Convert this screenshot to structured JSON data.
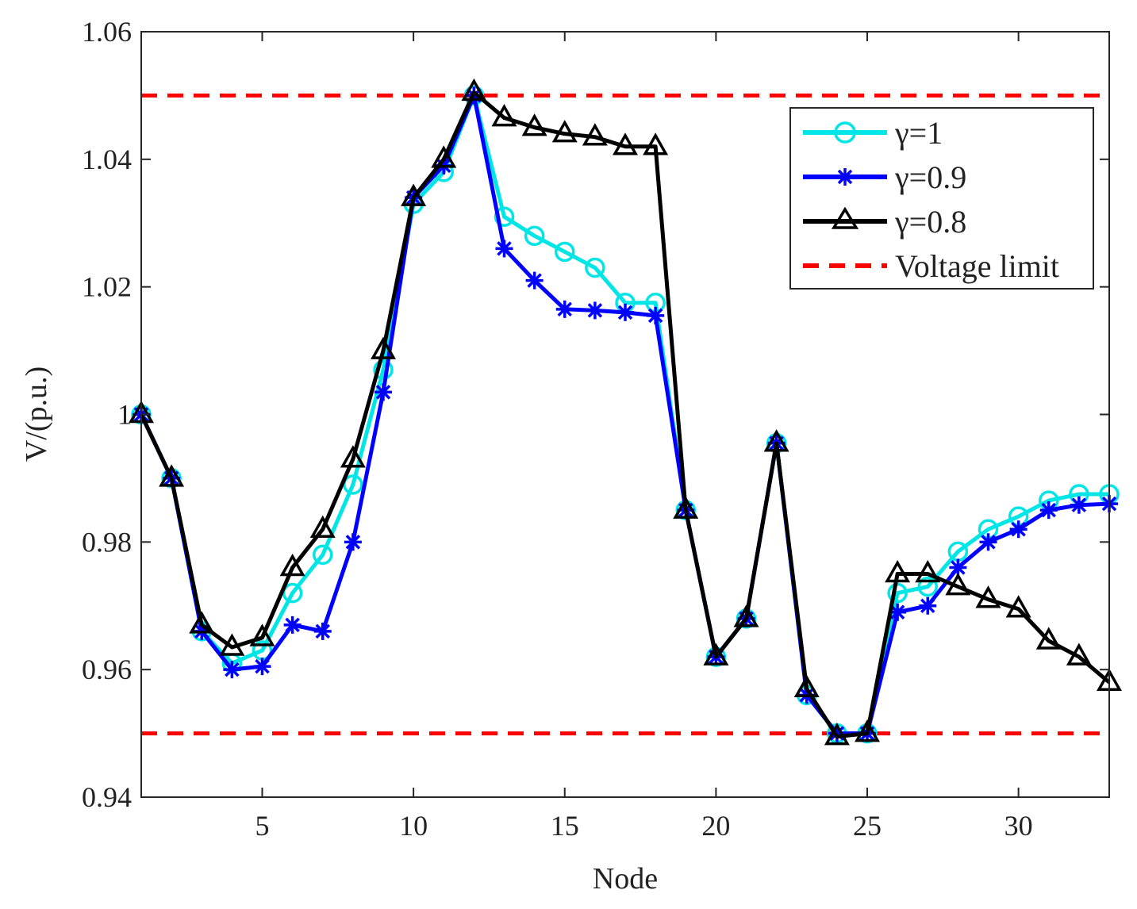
{
  "chart_data": {
    "type": "line",
    "title": "",
    "xlabel": "Node",
    "ylabel": "V/(p.u.)",
    "xlim": [
      1,
      33
    ],
    "ylim": [
      0.94,
      1.06
    ],
    "xticks": [
      5,
      10,
      15,
      20,
      25,
      30
    ],
    "yticks": [
      0.94,
      0.96,
      0.98,
      1.0,
      1.02,
      1.04,
      1.06
    ],
    "ytick_labels": [
      "0.94",
      "0.96",
      "0.98",
      "1",
      "1.02",
      "1.04",
      "1.06"
    ],
    "grid": false,
    "legend_position": "top-right",
    "x": [
      1,
      2,
      3,
      4,
      5,
      6,
      7,
      8,
      9,
      10,
      11,
      12,
      13,
      14,
      15,
      16,
      17,
      18,
      19,
      20,
      21,
      22,
      23,
      24,
      25,
      26,
      27,
      28,
      29,
      30,
      31,
      32,
      33
    ],
    "series": [
      {
        "name": "γ=1",
        "color": "#00e5e5",
        "marker": "circle",
        "values": [
          1.0,
          0.99,
          0.966,
          0.961,
          0.963,
          0.972,
          0.978,
          0.989,
          1.007,
          1.033,
          1.038,
          1.05,
          1.031,
          1.028,
          1.0255,
          1.023,
          1.0175,
          1.0175,
          0.985,
          0.962,
          0.968,
          0.9955,
          0.956,
          0.95,
          0.95,
          0.972,
          0.973,
          0.9785,
          0.982,
          0.984,
          0.9865,
          0.9875,
          0.9875
        ]
      },
      {
        "name": "γ=0.9",
        "color": "#0000ff",
        "marker": "asterisk",
        "values": [
          1.0,
          0.99,
          0.966,
          0.96,
          0.9605,
          0.967,
          0.966,
          0.98,
          1.0035,
          1.034,
          1.039,
          1.05,
          1.026,
          1.021,
          1.0165,
          1.0163,
          1.016,
          1.0155,
          0.985,
          0.962,
          0.968,
          0.9955,
          0.956,
          0.95,
          0.95,
          0.969,
          0.97,
          0.976,
          0.98,
          0.982,
          0.985,
          0.9858,
          0.986
        ]
      },
      {
        "name": "γ=0.8",
        "color": "#000000",
        "marker": "triangle",
        "values": [
          1.0,
          0.99,
          0.967,
          0.9635,
          0.965,
          0.976,
          0.982,
          0.993,
          1.01,
          1.034,
          1.04,
          1.0505,
          1.0465,
          1.045,
          1.044,
          1.0435,
          1.042,
          1.042,
          0.985,
          0.962,
          0.968,
          0.9955,
          0.957,
          0.9495,
          0.95,
          0.975,
          0.975,
          0.973,
          0.971,
          0.9695,
          0.9645,
          0.962,
          0.958
        ]
      }
    ],
    "reference_lines": [
      {
        "name": "Voltage limit",
        "color": "#ff0000",
        "style": "dashed",
        "values": [
          1.05,
          0.95
        ]
      }
    ]
  }
}
